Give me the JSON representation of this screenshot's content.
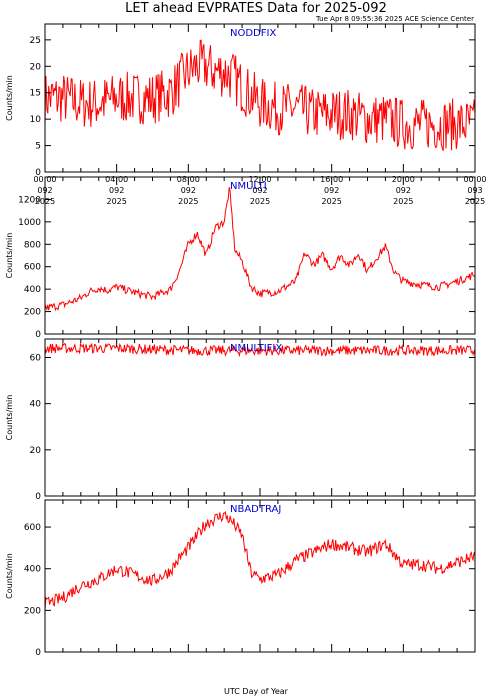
{
  "title": "LET ahead EVPRATES Data for 2025-092",
  "subtitle": "Tue Apr  8 09:55:36 2025 ACE Science Center",
  "xaxis_label": "UTC Day of Year",
  "colors": {
    "line": "#ff0000",
    "panel_label": "#0000cc",
    "axes": "#000000"
  },
  "chart_data": [
    {
      "type": "line",
      "panel_label": "NODDFIX",
      "ylabel": "Counts/min",
      "ylim": [
        0,
        28
      ],
      "yticks": [
        0,
        5,
        10,
        15,
        20,
        25
      ],
      "xlim": [
        0,
        24
      ],
      "x_tick_hours": [
        0,
        4,
        8,
        12,
        16,
        20,
        24
      ],
      "x_tick_labels": [
        [
          "00:00",
          "092",
          "2025"
        ],
        [
          "04:00",
          "092",
          "2025"
        ],
        [
          "08:00",
          "092",
          "2025"
        ],
        [
          "12:00",
          "092",
          "2025"
        ],
        [
          "16:00",
          "092",
          "2025"
        ],
        [
          "20:00",
          "092",
          "2025"
        ],
        [
          "00:00",
          "093",
          "2025"
        ]
      ],
      "grid": false,
      "x": [
        0,
        1,
        2,
        3,
        4,
        5,
        6,
        7,
        7.5,
        8,
        8.5,
        9,
        9.5,
        10,
        10.5,
        11,
        12,
        13,
        14,
        15,
        16,
        17,
        18,
        19,
        20,
        21,
        22,
        23,
        24
      ],
      "series": [
        {
          "values": [
            14,
            14,
            13,
            13,
            14,
            14,
            14,
            15,
            17,
            19,
            20,
            20,
            19,
            19,
            18,
            16,
            13,
            12,
            12,
            11,
            11,
            11,
            10,
            10,
            9,
            9,
            9,
            9,
            9
          ],
          "noise": 5
        }
      ]
    },
    {
      "type": "line",
      "panel_label": "NMULTI",
      "ylabel": "Counts/min",
      "ylim": [
        0,
        1400
      ],
      "yticks": [
        0,
        200,
        400,
        600,
        800,
        1000,
        1200
      ],
      "xlim": [
        0,
        24
      ],
      "x_tick_hours": [
        0,
        4,
        8,
        12,
        16,
        20,
        24
      ],
      "x_tick_labels": [
        [
          "",
          ""
        ],
        [
          "",
          ""
        ],
        [
          "",
          ""
        ],
        [
          "",
          ""
        ],
        [
          "",
          ""
        ],
        [
          "",
          ""
        ],
        [
          "",
          ""
        ]
      ],
      "grid": false,
      "x": [
        0,
        1,
        2,
        2.5,
        3,
        3.5,
        4,
        5,
        6,
        7,
        7.5,
        8,
        8.5,
        9,
        9.5,
        10,
        10.3,
        10.6,
        11,
        11.5,
        12,
        13,
        14,
        14.5,
        15,
        15.5,
        16,
        16.5,
        17,
        17.5,
        18,
        18.5,
        19,
        19.5,
        20,
        21,
        22,
        23,
        24
      ],
      "series": [
        {
          "values": [
            230,
            260,
            320,
            380,
            410,
            390,
            420,
            370,
            330,
            400,
            560,
            800,
            900,
            700,
            950,
            1000,
            1300,
            750,
            650,
            420,
            360,
            380,
            470,
            720,
            620,
            700,
            580,
            700,
            610,
            720,
            560,
            680,
            780,
            550,
            470,
            440,
            420,
            470,
            530
          ],
          "noise": 35
        }
      ]
    },
    {
      "type": "line",
      "panel_label": "NMULTIFIX",
      "ylabel": "Counts/min",
      "ylim": [
        0,
        68
      ],
      "yticks": [
        0,
        20,
        40,
        60
      ],
      "xlim": [
        0,
        24
      ],
      "x_tick_hours": [
        0,
        4,
        8,
        12,
        16,
        20,
        24
      ],
      "x_tick_labels": [
        [
          "",
          ""
        ],
        [
          "",
          ""
        ],
        [
          "",
          ""
        ],
        [
          "",
          ""
        ],
        [
          "",
          ""
        ],
        [
          "",
          ""
        ],
        [
          "",
          ""
        ]
      ],
      "grid": false,
      "x": [
        0,
        4,
        8,
        12,
        16,
        20,
        24
      ],
      "series": [
        {
          "values": [
            64,
            64,
            63,
            63,
            63,
            63,
            63
          ],
          "noise": 2.2
        }
      ]
    },
    {
      "type": "line",
      "panel_label": "NBADTRAJ",
      "ylabel": "Counts/min",
      "ylim": [
        0,
        730
      ],
      "yticks": [
        0,
        200,
        400,
        600
      ],
      "xlim": [
        0,
        24
      ],
      "x_tick_hours": [
        0,
        4,
        8,
        12,
        16,
        20,
        24
      ],
      "x_tick_labels": [
        [
          "",
          ""
        ],
        [
          "",
          ""
        ],
        [
          "",
          ""
        ],
        [
          "",
          ""
        ],
        [
          "",
          ""
        ],
        [
          "",
          ""
        ],
        [
          "",
          ""
        ]
      ],
      "grid": false,
      "x": [
        0,
        1,
        2,
        3,
        4,
        5,
        6,
        7,
        7.5,
        8,
        8.5,
        9,
        9.5,
        10,
        10.5,
        11,
        11.5,
        12,
        13,
        14,
        15,
        16,
        17,
        18,
        19,
        20,
        21,
        22,
        23,
        24
      ],
      "series": [
        {
          "values": [
            230,
            260,
            320,
            350,
            400,
            370,
            340,
            390,
            450,
            500,
            560,
            620,
            640,
            660,
            620,
            560,
            380,
            350,
            370,
            440,
            480,
            520,
            500,
            480,
            520,
            420,
            420,
            400,
            430,
            460
          ],
          "noise": 30
        }
      ]
    }
  ]
}
